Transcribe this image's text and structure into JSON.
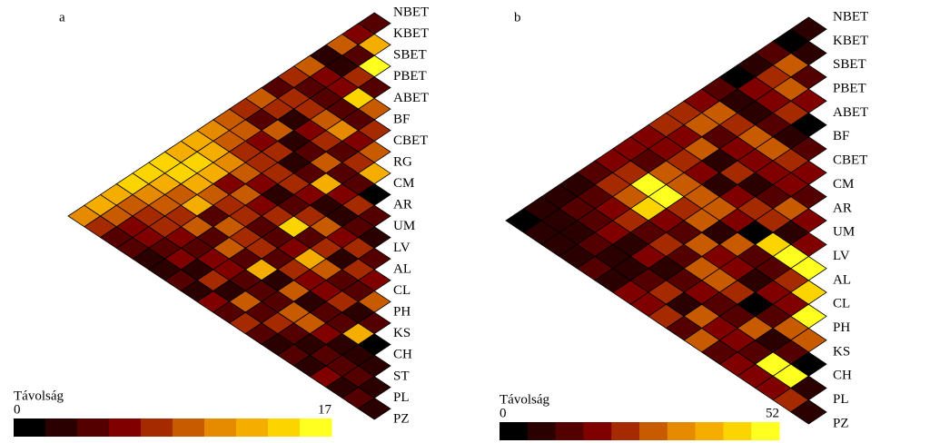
{
  "chart_data": [
    {
      "type": "triangle-heatmap",
      "panel_label": "a",
      "labels": [
        "NBET",
        "KBET",
        "SBET",
        "PBET",
        "ABET",
        "BF",
        "CBET",
        "RG",
        "CM",
        "AR",
        "UM",
        "LV",
        "AL",
        "CL",
        "PH",
        "KS",
        "CH",
        "ST",
        "PL",
        "PZ"
      ],
      "values": [
        [
          4,
          6,
          9,
          3,
          10,
          7,
          5,
          9,
          8,
          10,
          11,
          12,
          13,
          14,
          15,
          14,
          13,
          12,
          11
        ],
        [
          12,
          5,
          3,
          6,
          4,
          8,
          7,
          5,
          9,
          10,
          12,
          14,
          15,
          13,
          11,
          10,
          9,
          8
        ],
        [
          16,
          8,
          6,
          4,
          7,
          3,
          9,
          6,
          8,
          11,
          13,
          12,
          10,
          9,
          7,
          6,
          5
        ],
        [
          5,
          15,
          4,
          10,
          6,
          2,
          7,
          8,
          9,
          6,
          10,
          12,
          8,
          7,
          6,
          5
        ],
        [
          9,
          4,
          11,
          7,
          5,
          3,
          8,
          6,
          9,
          7,
          5,
          10,
          6,
          4,
          3
        ],
        [
          8,
          6,
          5,
          9,
          4,
          7,
          3,
          6,
          8,
          10,
          5,
          4,
          6,
          3
        ],
        [
          10,
          7,
          4,
          13,
          6,
          5,
          8,
          4,
          7,
          9,
          6,
          3,
          5
        ],
        [
          12,
          5,
          6,
          3,
          8,
          14,
          5,
          7,
          4,
          6,
          8,
          3
        ],
        [
          1,
          7,
          3,
          9,
          5,
          6,
          4,
          12,
          5,
          3,
          6
        ],
        [
          4,
          5,
          6,
          8,
          13,
          7,
          3,
          5,
          9,
          4
        ],
        [
          3,
          7,
          2,
          9,
          6,
          10,
          5,
          4,
          7
        ],
        [
          5,
          8,
          4,
          6,
          3,
          9,
          8,
          5
        ],
        [
          6,
          4,
          7,
          5,
          10,
          4,
          3
        ],
        [
          9,
          3,
          5,
          6,
          2,
          4
        ],
        [
          4,
          12,
          2,
          5,
          3
        ],
        [
          1,
          3,
          4,
          6
        ],
        [
          2,
          5,
          3
        ],
        [
          3,
          4
        ],
        [
          2
        ]
      ],
      "colorbar_title": "Távolság",
      "clim": [
        0,
        17
      ],
      "colors": [
        "#000000",
        "#2a0000",
        "#550000",
        "#800000",
        "#a52a00",
        "#c85a00",
        "#e68a00",
        "#f5ae00",
        "#fcd400",
        "#ffff20"
      ]
    },
    {
      "type": "triangle-heatmap",
      "panel_label": "b",
      "labels": [
        "NBET",
        "KBET",
        "SBET",
        "PBET",
        "ABET",
        "BF",
        "CBET",
        "CM",
        "AR",
        "UM",
        "LV",
        "AL",
        "CL",
        "PH",
        "KS",
        "CH",
        "PL",
        "PZ"
      ],
      "values": [
        [
          8,
          3,
          12,
          10,
          2,
          14,
          20,
          25,
          22,
          20,
          18,
          16,
          12,
          10,
          8,
          6,
          5
        ],
        [
          6,
          30,
          24,
          16,
          10,
          26,
          30,
          18,
          20,
          14,
          24,
          22,
          15,
          12,
          8,
          6
        ],
        [
          14,
          28,
          20,
          8,
          22,
          12,
          26,
          24,
          30,
          48,
          28,
          20,
          14,
          10,
          8
        ],
        [
          18,
          24,
          12,
          30,
          16,
          6,
          20,
          26,
          50,
          46,
          22,
          16,
          12,
          10
        ],
        [
          2,
          10,
          26,
          18,
          24,
          10,
          28,
          22,
          18,
          14,
          10,
          6,
          12
        ],
        [
          12,
          22,
          16,
          8,
          20,
          30,
          26,
          14,
          22,
          18,
          10,
          8
        ],
        [
          16,
          20,
          12,
          24,
          18,
          10,
          28,
          12,
          6,
          14,
          20
        ],
        [
          14,
          30,
          22,
          4,
          26,
          16,
          30,
          14,
          24,
          18
        ],
        [
          20,
          10,
          46,
          12,
          20,
          28,
          16,
          6,
          22
        ],
        [
          18,
          50,
          14,
          8,
          22,
          14,
          26,
          12
        ],
        [
          48,
          24,
          16,
          4,
          12,
          18,
          30
        ],
        [
          44,
          18,
          14,
          26,
          20,
          12
        ],
        [
          52,
          26,
          8,
          14,
          16
        ],
        [
          30,
          12,
          48,
          20
        ],
        [
          4,
          50,
          16
        ],
        [
          10,
          24
        ],
        [
          6
        ]
      ],
      "colorbar_title": "Távolság",
      "clim": [
        0,
        52
      ],
      "colors": [
        "#000000",
        "#2a0000",
        "#550000",
        "#800000",
        "#a52a00",
        "#c85a00",
        "#e68a00",
        "#f5ae00",
        "#fcd400",
        "#ffff20"
      ]
    }
  ]
}
